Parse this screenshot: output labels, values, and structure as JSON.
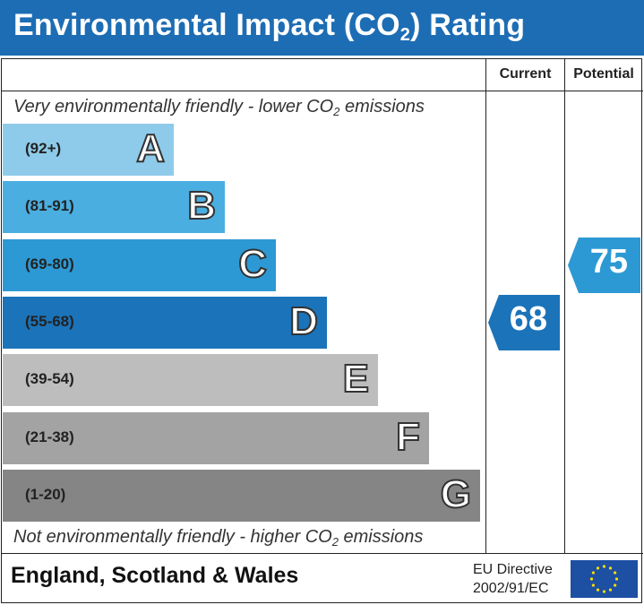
{
  "header": {
    "title_prefix": "Environmental Impact (CO",
    "title_sub": "2",
    "title_suffix": ") Rating"
  },
  "columns": {
    "current": "Current",
    "potential": "Potential"
  },
  "top_text": {
    "prefix": "Very environmentally friendly - lower CO",
    "sub": "2",
    "suffix": " emissions"
  },
  "bottom_text": {
    "prefix": "Not environmentally friendly - higher CO",
    "sub": "2",
    "suffix": " emissions"
  },
  "chart_data": {
    "type": "bar",
    "bands": [
      {
        "letter": "A",
        "range": "(92+)",
        "min": 92,
        "max": 100,
        "color": "#8ecbea"
      },
      {
        "letter": "B",
        "range": "(81-91)",
        "min": 81,
        "max": 91,
        "color": "#4aaee0"
      },
      {
        "letter": "C",
        "range": "(69-80)",
        "min": 69,
        "max": 80,
        "color": "#2d99d4"
      },
      {
        "letter": "D",
        "range": "(55-68)",
        "min": 55,
        "max": 68,
        "color": "#1b73b9"
      },
      {
        "letter": "E",
        "range": "(39-54)",
        "min": 39,
        "max": 54,
        "color": "#bdbdbd"
      },
      {
        "letter": "F",
        "range": "(21-38)",
        "min": 21,
        "max": 38,
        "color": "#a3a3a3"
      },
      {
        "letter": "G",
        "range": "(1-20)",
        "min": 1,
        "max": 20,
        "color": "#858585"
      }
    ],
    "current": {
      "value": 68,
      "band": "D",
      "color": "#1b73b9"
    },
    "potential": {
      "value": 75,
      "band": "C",
      "color": "#2d99d4"
    }
  },
  "footer": {
    "region": "England, Scotland & Wales",
    "directive_line1": "EU Directive",
    "directive_line2": "2002/91/EC"
  },
  "colors": {
    "header_bg": "#1d6db4",
    "flag_bg": "#1d4fa3",
    "flag_star": "#ffdd00"
  }
}
